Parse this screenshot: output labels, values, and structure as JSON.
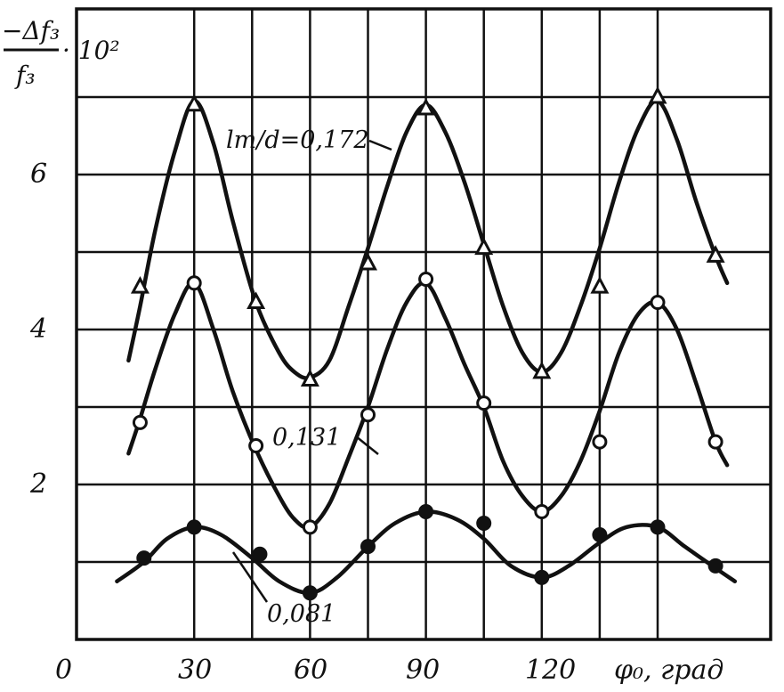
{
  "chart_data": {
    "type": "line",
    "ylabel": {
      "numerator": "−Δf₃",
      "denominator": "f₃",
      "multiplier": "· 10²"
    },
    "xlabel": "φ₀, град",
    "x_ticks": [
      "0",
      "30",
      "60",
      "90",
      "120"
    ],
    "y_ticks": [
      "2",
      "4",
      "6"
    ],
    "xlim": [
      0,
      172
    ],
    "ylim": [
      0,
      8
    ],
    "grid": true,
    "series": [
      {
        "name": "lт/d=0,172",
        "marker": "triangle",
        "points": [
          [
            16,
            4.55
          ],
          [
            30,
            6.9
          ],
          [
            46,
            4.35
          ],
          [
            60,
            3.35
          ],
          [
            75,
            4.85
          ],
          [
            90,
            6.85
          ],
          [
            105,
            5.05
          ],
          [
            120,
            3.45
          ],
          [
            135,
            4.55
          ],
          [
            150,
            7.0
          ],
          [
            165,
            4.95
          ]
        ],
        "curve": [
          [
            13,
            3.6
          ],
          [
            16,
            4.3
          ],
          [
            20,
            5.3
          ],
          [
            25,
            6.3
          ],
          [
            30,
            6.95
          ],
          [
            35,
            6.4
          ],
          [
            40,
            5.4
          ],
          [
            46,
            4.35
          ],
          [
            52,
            3.7
          ],
          [
            56,
            3.45
          ],
          [
            60,
            3.38
          ],
          [
            65,
            3.6
          ],
          [
            70,
            4.3
          ],
          [
            75,
            5.05
          ],
          [
            80,
            5.85
          ],
          [
            85,
            6.55
          ],
          [
            90,
            6.9
          ],
          [
            95,
            6.55
          ],
          [
            100,
            5.9
          ],
          [
            105,
            5.1
          ],
          [
            110,
            4.3
          ],
          [
            115,
            3.7
          ],
          [
            120,
            3.45
          ],
          [
            125,
            3.7
          ],
          [
            130,
            4.3
          ],
          [
            135,
            5.05
          ],
          [
            140,
            5.9
          ],
          [
            145,
            6.6
          ],
          [
            150,
            6.95
          ],
          [
            155,
            6.45
          ],
          [
            160,
            5.65
          ],
          [
            165,
            4.95
          ],
          [
            168,
            4.6
          ]
        ]
      },
      {
        "name": "0,131",
        "marker": "circle",
        "points": [
          [
            16,
            2.8
          ],
          [
            30,
            4.6
          ],
          [
            46,
            2.5
          ],
          [
            60,
            1.45
          ],
          [
            75,
            2.9
          ],
          [
            90,
            4.65
          ],
          [
            105,
            3.05
          ],
          [
            120,
            1.65
          ],
          [
            135,
            2.55
          ],
          [
            150,
            4.35
          ],
          [
            165,
            2.55
          ]
        ],
        "curve": [
          [
            13,
            2.4
          ],
          [
            16,
            2.85
          ],
          [
            20,
            3.5
          ],
          [
            25,
            4.2
          ],
          [
            30,
            4.6
          ],
          [
            35,
            4.0
          ],
          [
            40,
            3.2
          ],
          [
            46,
            2.45
          ],
          [
            52,
            1.85
          ],
          [
            56,
            1.55
          ],
          [
            60,
            1.45
          ],
          [
            65,
            1.75
          ],
          [
            70,
            2.35
          ],
          [
            75,
            3.0
          ],
          [
            80,
            3.75
          ],
          [
            85,
            4.35
          ],
          [
            90,
            4.6
          ],
          [
            95,
            4.15
          ],
          [
            100,
            3.55
          ],
          [
            105,
            3.0
          ],
          [
            110,
            2.3
          ],
          [
            115,
            1.85
          ],
          [
            120,
            1.65
          ],
          [
            125,
            1.85
          ],
          [
            130,
            2.3
          ],
          [
            135,
            2.95
          ],
          [
            140,
            3.7
          ],
          [
            145,
            4.2
          ],
          [
            150,
            4.35
          ],
          [
            155,
            4.0
          ],
          [
            160,
            3.3
          ],
          [
            165,
            2.55
          ],
          [
            168,
            2.25
          ]
        ]
      },
      {
        "name": "0,081",
        "marker": "filled-circle",
        "points": [
          [
            17,
            1.05
          ],
          [
            30,
            1.45
          ],
          [
            47,
            1.1
          ],
          [
            60,
            0.6
          ],
          [
            75,
            1.2
          ],
          [
            90,
            1.65
          ],
          [
            105,
            1.5
          ],
          [
            120,
            0.8
          ],
          [
            135,
            1.35
          ],
          [
            150,
            1.45
          ],
          [
            165,
            0.95
          ]
        ],
        "curve": [
          [
            10,
            0.75
          ],
          [
            17,
            1.0
          ],
          [
            23,
            1.3
          ],
          [
            30,
            1.45
          ],
          [
            37,
            1.35
          ],
          [
            45,
            1.05
          ],
          [
            52,
            0.75
          ],
          [
            60,
            0.6
          ],
          [
            67,
            0.8
          ],
          [
            75,
            1.2
          ],
          [
            82,
            1.5
          ],
          [
            90,
            1.65
          ],
          [
            98,
            1.55
          ],
          [
            105,
            1.3
          ],
          [
            112,
            0.95
          ],
          [
            120,
            0.8
          ],
          [
            127,
            0.95
          ],
          [
            135,
            1.25
          ],
          [
            142,
            1.45
          ],
          [
            150,
            1.45
          ],
          [
            157,
            1.2
          ],
          [
            165,
            0.92
          ],
          [
            170,
            0.75
          ]
        ]
      }
    ],
    "annotations": [
      "lт/d=0,172",
      "0,131",
      "0,081"
    ]
  }
}
